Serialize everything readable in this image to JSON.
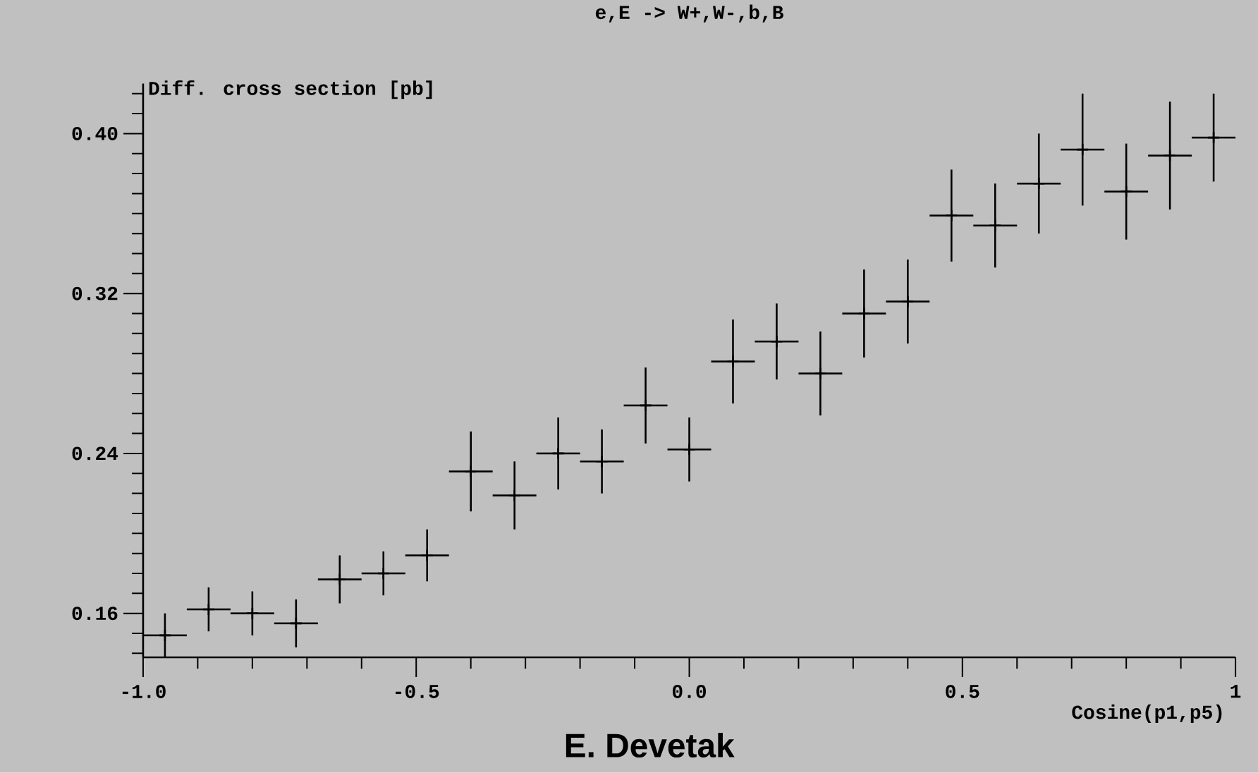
{
  "chart_data": {
    "type": "scatter",
    "title": "e,E -> W+,W-,b,B",
    "ylabel": "Diff. cross section [pb]",
    "xlabel": "Cosine(p1,p5)",
    "annotations": [
      "E. Devetak"
    ],
    "marker": "cross",
    "grid": false,
    "x": [
      -0.96,
      -0.88,
      -0.8,
      -0.72,
      -0.64,
      -0.56,
      -0.48,
      -0.4,
      -0.32,
      -0.24,
      -0.16,
      -0.08,
      0.0,
      0.08,
      0.16,
      0.24,
      0.32,
      0.4,
      0.48,
      0.56,
      0.64,
      0.72,
      0.8,
      0.88,
      0.96
    ],
    "series": [
      {
        "color": "#000000",
        "values": [
          0.149,
          0.162,
          0.16,
          0.155,
          0.177,
          0.18,
          0.189,
          0.231,
          0.219,
          0.24,
          0.236,
          0.264,
          0.242,
          0.286,
          0.296,
          0.28,
          0.31,
          0.316,
          0.359,
          0.354,
          0.375,
          0.392,
          0.371,
          0.389,
          0.398
        ],
        "errors": [
          0.011,
          0.011,
          0.011,
          0.012,
          0.012,
          0.011,
          0.013,
          0.02,
          0.017,
          0.018,
          0.016,
          0.019,
          0.016,
          0.021,
          0.019,
          0.021,
          0.022,
          0.021,
          0.023,
          0.021,
          0.025,
          0.028,
          0.024,
          0.027,
          0.022
        ],
        "xerrors": [
          0.04,
          0.04,
          0.04,
          0.04,
          0.04,
          0.04,
          0.04,
          0.04,
          0.04,
          0.04,
          0.04,
          0.04,
          0.04,
          0.04,
          0.04,
          0.04,
          0.04,
          0.04,
          0.04,
          0.04,
          0.04,
          0.04,
          0.04,
          0.04,
          0.04
        ]
      }
    ],
    "xlim": [
      -1,
      1
    ],
    "ylim": [
      0.138,
      0.425
    ],
    "xticks": [
      {
        "value": -1,
        "label": "-1.0"
      },
      {
        "value": -0.9,
        "label": null
      },
      {
        "value": -0.8,
        "label": null
      },
      {
        "value": -0.7,
        "label": null
      },
      {
        "value": -0.6,
        "label": null
      },
      {
        "value": -0.5,
        "label": "-0.5"
      },
      {
        "value": -0.4,
        "label": null
      },
      {
        "value": -0.3,
        "label": null
      },
      {
        "value": -0.2,
        "label": null
      },
      {
        "value": -0.1,
        "label": null
      },
      {
        "value": 0,
        "label": "0.0"
      },
      {
        "value": 0.1,
        "label": null
      },
      {
        "value": 0.2,
        "label": null
      },
      {
        "value": 0.3,
        "label": null
      },
      {
        "value": 0.4,
        "label": null
      },
      {
        "value": 0.5,
        "label": "0.5"
      },
      {
        "value": 0.6,
        "label": null
      },
      {
        "value": 0.7,
        "label": null
      },
      {
        "value": 0.8,
        "label": null
      },
      {
        "value": 0.9,
        "label": null
      },
      {
        "value": 1,
        "label": "1"
      }
    ],
    "yticks": [
      {
        "value": 0.14,
        "label": null
      },
      {
        "value": 0.15,
        "label": null
      },
      {
        "value": 0.16,
        "label": "0.16"
      },
      {
        "value": 0.17,
        "label": null
      },
      {
        "value": 0.18,
        "label": null
      },
      {
        "value": 0.19,
        "label": null
      },
      {
        "value": 0.2,
        "label": null
      },
      {
        "value": 0.21,
        "label": null
      },
      {
        "value": 0.22,
        "label": null
      },
      {
        "value": 0.23,
        "label": null
      },
      {
        "value": 0.24,
        "label": "0.24"
      },
      {
        "value": 0.25,
        "label": null
      },
      {
        "value": 0.26,
        "label": null
      },
      {
        "value": 0.27,
        "label": null
      },
      {
        "value": 0.28,
        "label": null
      },
      {
        "value": 0.29,
        "label": null
      },
      {
        "value": 0.3,
        "label": null
      },
      {
        "value": 0.31,
        "label": null
      },
      {
        "value": 0.32,
        "label": "0.32"
      },
      {
        "value": 0.33,
        "label": null
      },
      {
        "value": 0.34,
        "label": null
      },
      {
        "value": 0.35,
        "label": null
      },
      {
        "value": 0.36,
        "label": null
      },
      {
        "value": 0.37,
        "label": null
      },
      {
        "value": 0.38,
        "label": null
      },
      {
        "value": 0.39,
        "label": null
      },
      {
        "value": 0.4,
        "label": "0.40"
      },
      {
        "value": 0.41,
        "label": null
      },
      {
        "value": 0.42,
        "label": null
      }
    ]
  }
}
